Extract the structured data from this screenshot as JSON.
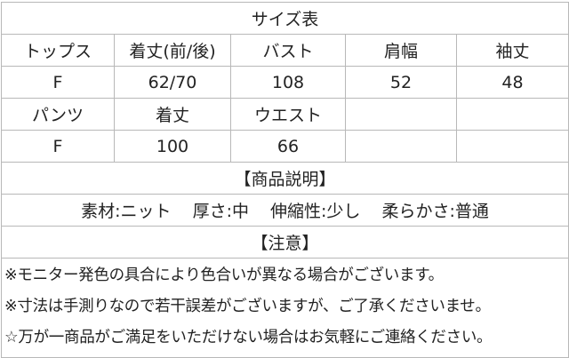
{
  "title": "サイズ表",
  "tops": {
    "headers": [
      "トップス",
      "着丈(前/後)",
      "バスト",
      "肩幅",
      "袖丈"
    ],
    "values": [
      "F",
      "62/70",
      "108",
      "52",
      "48"
    ]
  },
  "pants": {
    "headers": [
      "パンツ",
      "着丈",
      "ウエスト",
      "",
      ""
    ],
    "values": [
      "F",
      "100",
      "66",
      "",
      ""
    ]
  },
  "description": {
    "heading": "【商品説明】",
    "items": [
      "素材:ニット",
      "厚さ:中",
      "伸縮性:少し",
      "柔らかさ:普通"
    ]
  },
  "notice": {
    "heading": "【注意】",
    "lines": [
      "※モニター発色の具合により色合いが異なる場合がございます。",
      "※寸法は手測りなので若干誤差がございますが、ご了承くださいませ。",
      "☆万が一商品がご満足をいただけない場合はお気軽にご連絡ください。"
    ]
  }
}
